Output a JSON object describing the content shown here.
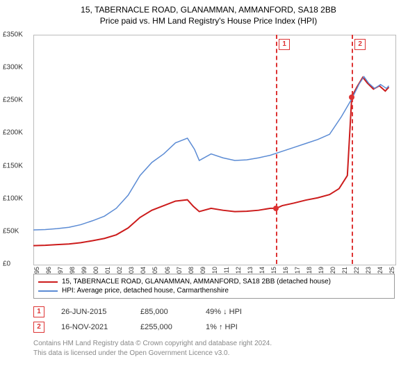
{
  "title_line1": "15, TABERNACLE ROAD, GLANAMMAN, AMMANFORD, SA18 2BB",
  "title_line2": "Price paid vs. HM Land Registry's House Price Index (HPI)",
  "chart": {
    "type": "line",
    "background_color": "#ffffff",
    "grid_color": "#cccccc",
    "border_color": "#bbbbbb",
    "x_years": [
      1995,
      1996,
      1997,
      1998,
      1999,
      2000,
      2001,
      2002,
      2003,
      2004,
      2005,
      2006,
      2007,
      2008,
      2009,
      2010,
      2011,
      2012,
      2013,
      2014,
      2015,
      2016,
      2017,
      2018,
      2019,
      2020,
      2021,
      2022,
      2023,
      2024,
      2025
    ],
    "xlim": [
      1995,
      2025.5
    ],
    "ylim": [
      0,
      350000
    ],
    "ytick_step": 50000,
    "ytick_labels": [
      "£0",
      "£50K",
      "£100K",
      "£150K",
      "£200K",
      "£250K",
      "£300K",
      "£350K"
    ],
    "series": [
      {
        "name": "property",
        "color": "#cc1b1b",
        "width": 2,
        "data": [
          [
            1995,
            28000
          ],
          [
            1996,
            28500
          ],
          [
            1997,
            29500
          ],
          [
            1998,
            30500
          ],
          [
            1999,
            32500
          ],
          [
            2000,
            35500
          ],
          [
            2001,
            39000
          ],
          [
            2002,
            44500
          ],
          [
            2003,
            55000
          ],
          [
            2004,
            71000
          ],
          [
            2005,
            82000
          ],
          [
            2006,
            89000
          ],
          [
            2007,
            96000
          ],
          [
            2008,
            98000
          ],
          [
            2008.5,
            88000
          ],
          [
            2009,
            80000
          ],
          [
            2010,
            85000
          ],
          [
            2011,
            82000
          ],
          [
            2012,
            80000
          ],
          [
            2013,
            80500
          ],
          [
            2014,
            82000
          ],
          [
            2015,
            85000
          ],
          [
            2015.5,
            85000
          ],
          [
            2016,
            89000
          ],
          [
            2017,
            93000
          ],
          [
            2018,
            97500
          ],
          [
            2019,
            101000
          ],
          [
            2020,
            106000
          ],
          [
            2020.8,
            115000
          ],
          [
            2021.5,
            135000
          ],
          [
            2021.87,
            255000
          ],
          [
            2022.3,
            270000
          ],
          [
            2022.8,
            285000
          ],
          [
            2023.2,
            276000
          ],
          [
            2023.7,
            267000
          ],
          [
            2024.2,
            272000
          ],
          [
            2024.7,
            264000
          ],
          [
            2025,
            270000
          ]
        ]
      },
      {
        "name": "hpi",
        "color": "#5b8bd4",
        "width": 1.5,
        "data": [
          [
            1995,
            52000
          ],
          [
            1996,
            52500
          ],
          [
            1997,
            54000
          ],
          [
            1998,
            56000
          ],
          [
            1999,
            60000
          ],
          [
            2000,
            66000
          ],
          [
            2001,
            73000
          ],
          [
            2002,
            85000
          ],
          [
            2003,
            105000
          ],
          [
            2004,
            135000
          ],
          [
            2005,
            155000
          ],
          [
            2006,
            168000
          ],
          [
            2007,
            185000
          ],
          [
            2008,
            192000
          ],
          [
            2008.6,
            175000
          ],
          [
            2009,
            158000
          ],
          [
            2010,
            168000
          ],
          [
            2011,
            162000
          ],
          [
            2012,
            158000
          ],
          [
            2013,
            159000
          ],
          [
            2014,
            162000
          ],
          [
            2015,
            166000
          ],
          [
            2016,
            172000
          ],
          [
            2017,
            178000
          ],
          [
            2018,
            184000
          ],
          [
            2019,
            190000
          ],
          [
            2020,
            198000
          ],
          [
            2021,
            225000
          ],
          [
            2021.87,
            252000
          ],
          [
            2022.5,
            275000
          ],
          [
            2022.9,
            286000
          ],
          [
            2023.3,
            276000
          ],
          [
            2023.8,
            268000
          ],
          [
            2024.3,
            274000
          ],
          [
            2024.8,
            268000
          ],
          [
            2025,
            272000
          ]
        ]
      }
    ],
    "markers": [
      {
        "num": "1",
        "year": 2015.48,
        "dot_value": 85000
      },
      {
        "num": "2",
        "year": 2021.87,
        "dot_value": 255000
      }
    ],
    "shade_bands": [
      {
        "from": 2015.48,
        "to": 2021.87,
        "class": "shade"
      },
      {
        "from": 2020.2,
        "to": 2021.87,
        "class": "shade shade2"
      }
    ]
  },
  "legend": {
    "items": [
      {
        "color": "#cc1b1b",
        "label": "15, TABERNACLE ROAD, GLANAMMAN, AMMANFORD, SA18 2BB (detached house)"
      },
      {
        "color": "#5b8bd4",
        "label": "HPI: Average price, detached house, Carmarthenshire"
      }
    ]
  },
  "transactions": [
    {
      "num": "1",
      "date": "26-JUN-2015",
      "price": "£85,000",
      "delta": "49% ↓ HPI"
    },
    {
      "num": "2",
      "date": "16-NOV-2021",
      "price": "£255,000",
      "delta": "1% ↑ HPI"
    }
  ],
  "footer_line1": "Contains HM Land Registry data © Crown copyright and database right 2024.",
  "footer_line2": "This data is licensed under the Open Government Licence v3.0."
}
